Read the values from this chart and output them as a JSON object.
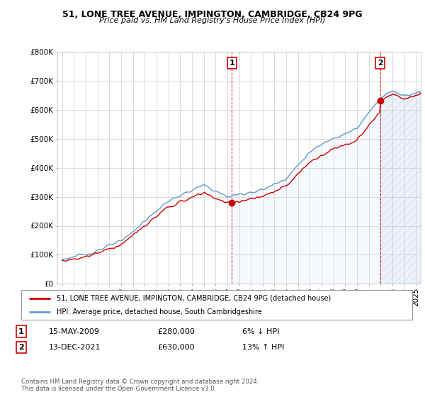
{
  "title1": "51, LONE TREE AVENUE, IMPINGTON, CAMBRIDGE, CB24 9PG",
  "title2": "Price paid vs. HM Land Registry's House Price Index (HPI)",
  "legend_line1": "51, LONE TREE AVENUE, IMPINGTON, CAMBRIDGE, CB24 9PG (detached house)",
  "legend_line2": "HPI: Average price, detached house, South Cambridgeshire",
  "footnote": "Contains HM Land Registry data © Crown copyright and database right 2024.\nThis data is licensed under the Open Government Licence v3.0.",
  "sale1_date": "15-MAY-2009",
  "sale1_price": "£280,000",
  "sale1_hpi": "6% ↓ HPI",
  "sale2_date": "13-DEC-2021",
  "sale2_price": "£630,000",
  "sale2_hpi": "13% ↑ HPI",
  "house_color": "#cc0000",
  "hpi_color": "#6699cc",
  "fill_color": "#ddeeff",
  "sale1_t": 2009.38,
  "sale2_t": 2021.96,
  "sale1_price_val": 280000,
  "sale2_price_val": 630000,
  "ylim_min": 0,
  "ylim_max": 800000,
  "xlim_min": 1994.6,
  "xlim_max": 2025.4,
  "background_color": "#ffffff",
  "grid_color": "#cccccc"
}
